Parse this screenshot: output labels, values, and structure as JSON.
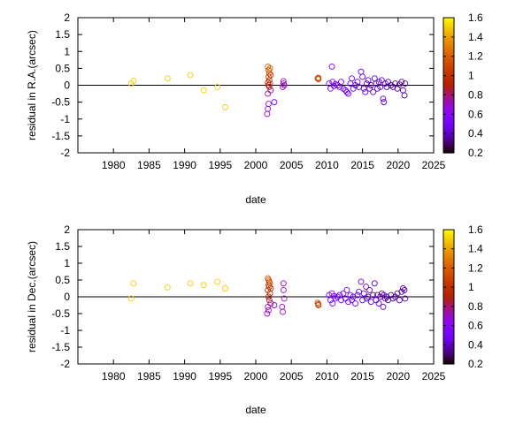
{
  "chart_data": [
    {
      "type": "scatter",
      "xlabel": "date",
      "ylabel": "residual in R.A.(arcsec)",
      "xlim": [
        1975,
        2025
      ],
      "ylim": [
        -2,
        2
      ],
      "x_ticks": [
        "1980",
        "1985",
        "1990",
        "1995",
        "2000",
        "2005",
        "2010",
        "2015",
        "2020",
        "2025"
      ],
      "y_ticks": [
        "2",
        "1.5",
        "1",
        "0.5",
        "0",
        "-0.5",
        "-1",
        "-1.5",
        "-2"
      ],
      "zero_line": true,
      "marker": "open-circle",
      "color_scale": {
        "min": 0.2,
        "max": 1.6,
        "ticks": [
          "1.6",
          "1.4",
          "1.2",
          "1",
          "0.8",
          "0.6",
          "0.4",
          "0.2"
        ],
        "colormap": "gnuplot-rgbformulae-7-5-15"
      },
      "points": [
        [
          1982.5,
          0.05,
          1.5
        ],
        [
          1982.8,
          0.13,
          1.5
        ],
        [
          1987.6,
          0.2,
          1.5
        ],
        [
          1990.8,
          0.3,
          1.5
        ],
        [
          1992.7,
          -0.15,
          1.5
        ],
        [
          1994.6,
          -0.05,
          1.5
        ],
        [
          1995.7,
          -0.65,
          1.5
        ],
        [
          2001.7,
          0.55,
          1.2
        ],
        [
          2001.8,
          0.45,
          1.15
        ],
        [
          2001.9,
          0.35,
          1.1
        ],
        [
          2002.0,
          0.5,
          1.2
        ],
        [
          2001.8,
          0.25,
          1.1
        ],
        [
          2001.9,
          0.15,
          1.0
        ],
        [
          2001.7,
          0.08,
          0.95
        ],
        [
          2002.0,
          0.05,
          1.0
        ],
        [
          2001.8,
          0.0,
          0.9
        ],
        [
          2001.9,
          -0.05,
          0.85
        ],
        [
          2002.1,
          -0.15,
          0.8
        ],
        [
          2001.7,
          -0.25,
          0.75
        ],
        [
          2001.8,
          -0.55,
          0.7
        ],
        [
          2001.7,
          -0.7,
          0.7
        ],
        [
          2001.6,
          -0.85,
          0.7
        ],
        [
          2002.1,
          0.3,
          1.05
        ],
        [
          2002.6,
          -0.5,
          0.65
        ],
        [
          2003.8,
          -0.05,
          0.7
        ],
        [
          2003.9,
          0.05,
          0.7
        ],
        [
          2003.9,
          0.12,
          0.7
        ],
        [
          2004.0,
          0.0,
          0.7
        ],
        [
          2008.7,
          0.2,
          1.1
        ],
        [
          2008.8,
          0.22,
          1.1
        ],
        [
          2008.8,
          0.18,
          1.1
        ],
        [
          2010.3,
          0.05,
          0.55
        ],
        [
          2010.5,
          -0.1,
          0.55
        ],
        [
          2010.7,
          0.55,
          0.55
        ],
        [
          2010.8,
          0.1,
          0.55
        ],
        [
          2011.0,
          -0.02,
          0.55
        ],
        [
          2011.2,
          0.03,
          0.55
        ],
        [
          2011.5,
          0.0,
          0.5
        ],
        [
          2011.8,
          -0.05,
          0.5
        ],
        [
          2012.0,
          0.1,
          0.5
        ],
        [
          2012.3,
          -0.1,
          0.5
        ],
        [
          2012.6,
          -0.15,
          0.5
        ],
        [
          2012.8,
          -0.2,
          0.5
        ],
        [
          2013.0,
          -0.25,
          0.45
        ],
        [
          2013.3,
          0.05,
          0.45
        ],
        [
          2013.5,
          0.2,
          0.45
        ],
        [
          2013.7,
          -0.1,
          0.45
        ],
        [
          2014.0,
          0.0,
          0.45
        ],
        [
          2014.3,
          0.1,
          0.45
        ],
        [
          2014.5,
          -0.05,
          0.45
        ],
        [
          2014.8,
          0.4,
          0.45
        ],
        [
          2015.0,
          0.25,
          0.45
        ],
        [
          2015.2,
          -0.1,
          0.45
        ],
        [
          2015.4,
          -0.2,
          0.45
        ],
        [
          2015.6,
          0.05,
          0.4
        ],
        [
          2015.8,
          0.15,
          0.4
        ],
        [
          2016.0,
          -0.1,
          0.4
        ],
        [
          2016.2,
          0.0,
          0.4
        ],
        [
          2016.5,
          -0.2,
          0.4
        ],
        [
          2016.7,
          0.2,
          0.4
        ],
        [
          2016.9,
          0.05,
          0.4
        ],
        [
          2017.1,
          -0.1,
          0.4
        ],
        [
          2017.3,
          0.1,
          0.4
        ],
        [
          2017.5,
          -0.05,
          0.4
        ],
        [
          2017.7,
          0.15,
          0.4
        ],
        [
          2017.9,
          -0.4,
          0.4
        ],
        [
          2018.0,
          -0.5,
          0.4
        ],
        [
          2018.2,
          0.05,
          0.4
        ],
        [
          2018.4,
          -0.05,
          0.35
        ],
        [
          2018.6,
          0.1,
          0.35
        ],
        [
          2019.0,
          0.0,
          0.35
        ],
        [
          2019.3,
          -0.05,
          0.35
        ],
        [
          2019.6,
          0.05,
          0.35
        ],
        [
          2019.9,
          -0.1,
          0.35
        ],
        [
          2020.2,
          0.02,
          0.35
        ],
        [
          2020.5,
          0.1,
          0.35
        ],
        [
          2020.7,
          -0.15,
          0.35
        ],
        [
          2020.9,
          -0.3,
          0.35
        ],
        [
          2021.0,
          0.05,
          0.35
        ]
      ]
    },
    {
      "type": "scatter",
      "xlabel": "date",
      "ylabel": "residual in Dec.(arcsec)",
      "xlim": [
        1975,
        2025
      ],
      "ylim": [
        -2,
        2
      ],
      "x_ticks": [
        "1980",
        "1985",
        "1990",
        "1995",
        "2000",
        "2005",
        "2010",
        "2015",
        "2020",
        "2025"
      ],
      "y_ticks": [
        "2",
        "1.5",
        "1",
        "0.5",
        "0",
        "-0.5",
        "-1",
        "-1.5",
        "-2"
      ],
      "zero_line": true,
      "marker": "open-circle",
      "color_scale": {
        "min": 0.2,
        "max": 1.6,
        "ticks": [
          "1.6",
          "1.4",
          "1.2",
          "1",
          "0.8",
          "0.6",
          "0.4",
          "0.2"
        ],
        "colormap": "gnuplot-rgbformulae-7-5-15"
      },
      "points": [
        [
          1982.5,
          -0.05,
          1.5
        ],
        [
          1982.8,
          0.4,
          1.5
        ],
        [
          1987.6,
          0.28,
          1.5
        ],
        [
          1990.8,
          0.4,
          1.5
        ],
        [
          1992.7,
          0.35,
          1.5
        ],
        [
          1994.6,
          0.45,
          1.5
        ],
        [
          1995.7,
          0.25,
          1.5
        ],
        [
          2001.7,
          0.55,
          1.2
        ],
        [
          2001.8,
          0.5,
          1.15
        ],
        [
          2001.9,
          0.45,
          1.1
        ],
        [
          2002.0,
          0.4,
          1.2
        ],
        [
          2001.8,
          0.35,
          1.1
        ],
        [
          2001.9,
          0.3,
          1.0
        ],
        [
          2001.7,
          0.2,
          0.95
        ],
        [
          2002.0,
          0.1,
          1.0
        ],
        [
          2001.8,
          0.0,
          0.9
        ],
        [
          2001.9,
          -0.1,
          0.85
        ],
        [
          2002.1,
          -0.2,
          0.8
        ],
        [
          2001.7,
          -0.3,
          0.75
        ],
        [
          2001.8,
          -0.4,
          0.7
        ],
        [
          2001.6,
          -0.5,
          0.7
        ],
        [
          2002.1,
          0.25,
          1.05
        ],
        [
          2002.6,
          -0.25,
          0.65
        ],
        [
          2003.7,
          -0.3,
          0.7
        ],
        [
          2003.8,
          -0.45,
          0.7
        ],
        [
          2003.9,
          0.2,
          0.7
        ],
        [
          2003.9,
          0.4,
          0.7
        ],
        [
          2004.0,
          -0.05,
          0.7
        ],
        [
          2008.7,
          -0.18,
          1.1
        ],
        [
          2008.8,
          -0.22,
          1.1
        ],
        [
          2008.8,
          -0.25,
          1.1
        ],
        [
          2010.3,
          0.05,
          0.55
        ],
        [
          2010.5,
          -0.1,
          0.55
        ],
        [
          2010.7,
          0.1,
          0.55
        ],
        [
          2010.8,
          -0.2,
          0.55
        ],
        [
          2011.0,
          0.02,
          0.55
        ],
        [
          2011.2,
          -0.05,
          0.55
        ],
        [
          2011.5,
          0.0,
          0.5
        ],
        [
          2011.8,
          0.05,
          0.5
        ],
        [
          2012.0,
          -0.1,
          0.5
        ],
        [
          2012.3,
          0.1,
          0.5
        ],
        [
          2012.6,
          -0.05,
          0.5
        ],
        [
          2012.8,
          0.2,
          0.5
        ],
        [
          2013.0,
          -0.15,
          0.45
        ],
        [
          2013.3,
          0.05,
          0.45
        ],
        [
          2013.5,
          -0.1,
          0.45
        ],
        [
          2013.7,
          0.0,
          0.45
        ],
        [
          2014.0,
          -0.2,
          0.45
        ],
        [
          2014.3,
          0.05,
          0.45
        ],
        [
          2014.5,
          0.15,
          0.45
        ],
        [
          2014.8,
          0.45,
          0.45
        ],
        [
          2015.0,
          -0.1,
          0.45
        ],
        [
          2015.2,
          0.1,
          0.45
        ],
        [
          2015.5,
          0.3,
          0.45
        ],
        [
          2015.6,
          -0.05,
          0.4
        ],
        [
          2015.8,
          0.0,
          0.4
        ],
        [
          2016.0,
          0.2,
          0.4
        ],
        [
          2016.2,
          -0.15,
          0.4
        ],
        [
          2016.5,
          0.05,
          0.4
        ],
        [
          2016.7,
          0.4,
          0.4
        ],
        [
          2016.9,
          -0.1,
          0.4
        ],
        [
          2017.1,
          0.05,
          0.4
        ],
        [
          2017.3,
          -0.2,
          0.4
        ],
        [
          2017.5,
          0.0,
          0.4
        ],
        [
          2017.7,
          0.1,
          0.4
        ],
        [
          2017.9,
          -0.3,
          0.4
        ],
        [
          2018.0,
          0.05,
          0.4
        ],
        [
          2018.2,
          -0.05,
          0.4
        ],
        [
          2018.4,
          0.0,
          0.35
        ],
        [
          2018.6,
          -0.1,
          0.35
        ],
        [
          2019.0,
          0.05,
          0.35
        ],
        [
          2019.3,
          -0.05,
          0.35
        ],
        [
          2019.6,
          0.0,
          0.35
        ],
        [
          2019.9,
          0.1,
          0.35
        ],
        [
          2020.2,
          -0.1,
          0.35
        ],
        [
          2020.5,
          0.15,
          0.35
        ],
        [
          2020.7,
          0.25,
          0.35
        ],
        [
          2020.9,
          0.2,
          0.35
        ],
        [
          2021.0,
          -0.05,
          0.35
        ]
      ]
    }
  ]
}
